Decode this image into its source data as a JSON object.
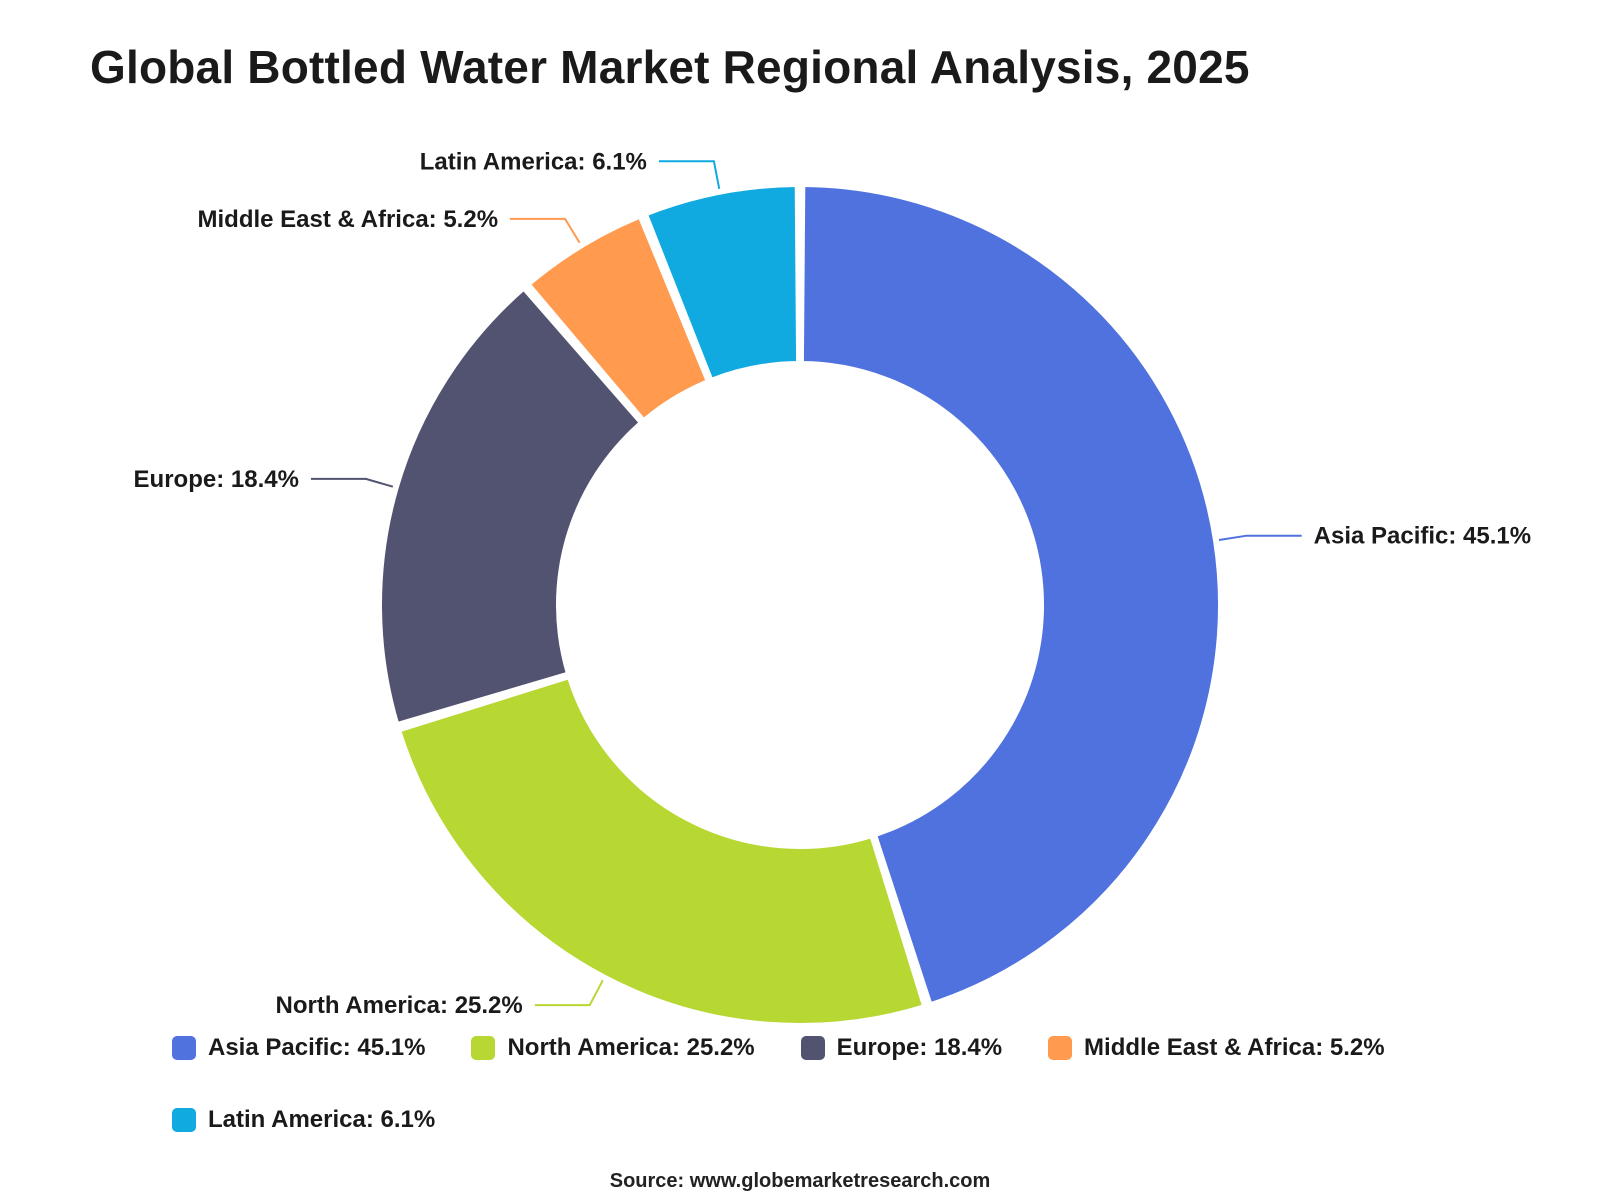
{
  "title": "Global Bottled Water Market Regional Analysis, 2025",
  "source": "Source: www.globemarketresearch.com",
  "chart_data": {
    "type": "pie",
    "variant": "donut",
    "title": "Global Bottled Water Market Regional Analysis, 2025",
    "unit": "%",
    "legend_position": "bottom",
    "slices": [
      {
        "label": "Asia Pacific",
        "value": 45.1,
        "display": "Asia Pacific: 45.1%",
        "color": "#5072DF"
      },
      {
        "label": "North America",
        "value": 25.2,
        "display": "North America: 25.2%",
        "color": "#B7D733"
      },
      {
        "label": "Europe",
        "value": 18.4,
        "display": "Europe: 18.4%",
        "color": "#515371"
      },
      {
        "label": "Middle East & Africa",
        "value": 5.2,
        "display": "Middle East & Africa: 5.2%",
        "color": "#FF9A4E"
      },
      {
        "label": "Latin America",
        "value": 6.1,
        "display": "Latin America: 6.1%",
        "color": "#10A9E0"
      }
    ]
  }
}
